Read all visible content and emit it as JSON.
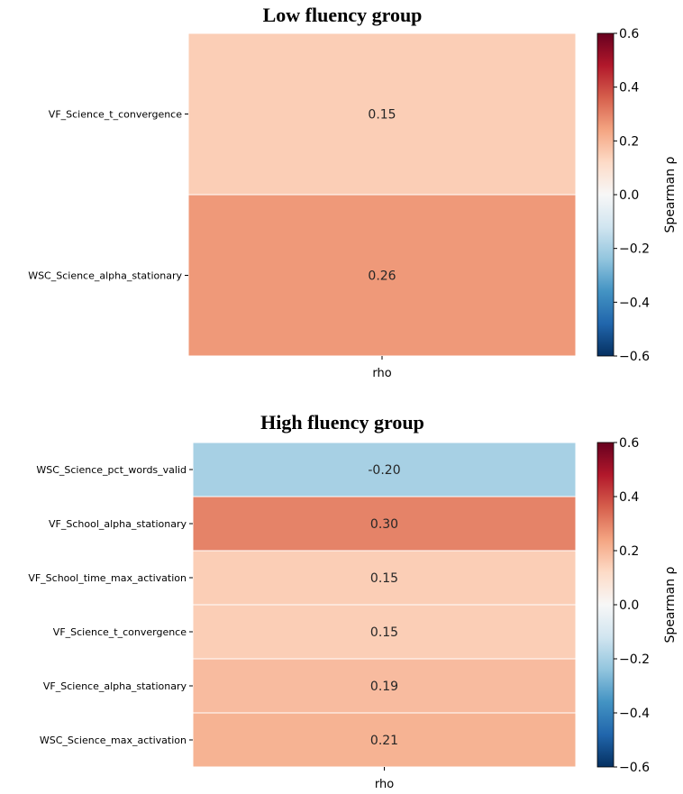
{
  "chart_data": [
    {
      "type": "heatmap",
      "title": "Low fluency group",
      "rows": [
        "VF_Science_t_convergence",
        "WSC_Science_alpha_stationary"
      ],
      "columns": [
        "rho"
      ],
      "values": [
        0.15,
        0.26
      ],
      "value_labels": [
        "0.15",
        "0.26"
      ],
      "colorbar": {
        "label": "Spearman ρ",
        "range": [
          -0.6,
          0.6
        ],
        "ticks": [
          "0.6",
          "0.4",
          "0.2",
          "0.0",
          "−0.2",
          "−0.4",
          "−0.6"
        ],
        "colormap": "RdBu_r"
      }
    },
    {
      "type": "heatmap",
      "title": "High fluency group",
      "rows": [
        "WSC_Science_pct_words_valid",
        "VF_School_alpha_stationary",
        "VF_School_time_max_activation",
        "VF_Science_t_convergence",
        "VF_Science_alpha_stationary",
        "WSC_Science_max_activation"
      ],
      "columns": [
        "rho"
      ],
      "values": [
        -0.2,
        0.3,
        0.15,
        0.15,
        0.19,
        0.21
      ],
      "value_labels": [
        "-0.20",
        "0.30",
        "0.15",
        "0.15",
        "0.19",
        "0.21"
      ],
      "colorbar": {
        "label": "Spearman ρ",
        "range": [
          -0.6,
          0.6
        ],
        "ticks": [
          "0.6",
          "0.4",
          "0.2",
          "0.0",
          "−0.2",
          "−0.4",
          "−0.6"
        ],
        "colormap": "RdBu_r"
      }
    }
  ]
}
